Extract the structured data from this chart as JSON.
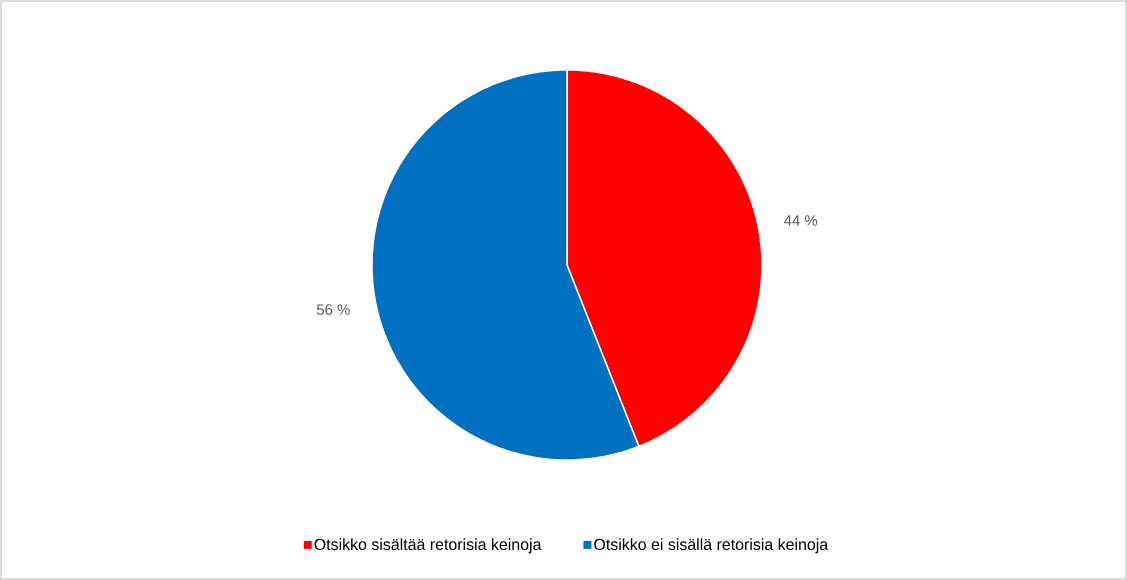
{
  "chart_data": {
    "type": "pie",
    "categories": [
      "Otsikko sisältää retorisia keinoja",
      "Otsikko ei sisällä retorisia keinoja"
    ],
    "values": [
      44,
      56
    ],
    "colors": [
      "#ff0000",
      "#0070c0"
    ],
    "value_labels": [
      "44 %",
      "56 %"
    ],
    "legend": "bottom"
  }
}
